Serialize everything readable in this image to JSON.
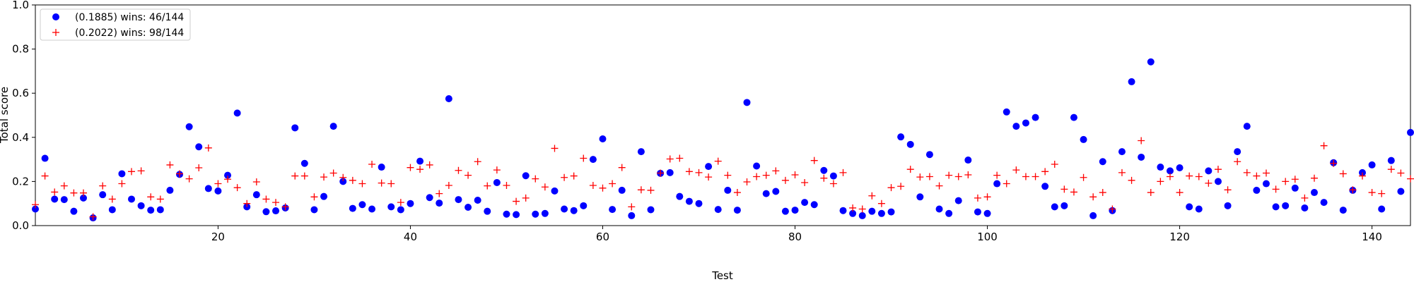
{
  "chart_data": {
    "type": "scatter",
    "title": "",
    "xlabel": "Test",
    "ylabel": "Total score",
    "xlim": [
      1,
      144
    ],
    "ylim": [
      0,
      1.0
    ],
    "xticks": [
      20,
      40,
      60,
      80,
      100,
      120,
      140
    ],
    "yticks": [
      0.0,
      0.2,
      0.4,
      0.6,
      0.8,
      1.0
    ],
    "grid": false,
    "legend_position": "top-left",
    "series": [
      {
        "name": "(0.1885) wins: 46/144",
        "marker": "circle",
        "color": "#0000ff",
        "x": [
          1,
          2,
          3,
          4,
          5,
          6,
          7,
          8,
          9,
          10,
          11,
          12,
          13,
          14,
          15,
          16,
          17,
          18,
          19,
          20,
          21,
          22,
          23,
          24,
          25,
          26,
          27,
          28,
          29,
          30,
          31,
          32,
          33,
          34,
          35,
          36,
          37,
          38,
          39,
          40,
          41,
          42,
          43,
          44,
          45,
          46,
          47,
          48,
          49,
          50,
          51,
          52,
          53,
          54,
          55,
          56,
          57,
          58,
          59,
          60,
          61,
          62,
          63,
          64,
          65,
          66,
          67,
          68,
          69,
          70,
          71,
          72,
          73,
          74,
          75,
          76,
          77,
          78,
          79,
          80,
          81,
          82,
          83,
          84,
          85,
          86,
          87,
          88,
          89,
          90,
          91,
          92,
          93,
          94,
          95,
          96,
          97,
          98,
          99,
          100,
          101,
          102,
          103,
          104,
          105,
          106,
          107,
          108,
          109,
          110,
          111,
          112,
          113,
          114,
          115,
          116,
          117,
          118,
          119,
          120,
          121,
          122,
          123,
          124,
          125,
          126,
          127,
          128,
          129,
          130,
          131,
          132,
          133,
          134,
          135,
          136,
          137,
          138,
          139,
          140,
          141,
          142,
          143,
          144
        ],
        "y": [
          0.075,
          0.305,
          0.12,
          0.118,
          0.065,
          0.125,
          0.035,
          0.14,
          0.072,
          0.235,
          0.12,
          0.09,
          0.07,
          0.072,
          0.16,
          0.232,
          0.448,
          0.357,
          0.168,
          0.157,
          0.228,
          0.51,
          0.085,
          0.14,
          0.063,
          0.067,
          0.08,
          0.443,
          0.282,
          0.072,
          0.132,
          0.45,
          0.2,
          0.078,
          0.095,
          0.075,
          0.265,
          0.085,
          0.072,
          0.1,
          0.292,
          0.127,
          0.102,
          0.575,
          0.118,
          0.083,
          0.115,
          0.065,
          0.195,
          0.052,
          0.05,
          0.226,
          0.052,
          0.055,
          0.157,
          0.075,
          0.068,
          0.09,
          0.3,
          0.393,
          0.073,
          0.16,
          0.045,
          0.335,
          0.072,
          0.237,
          0.24,
          0.132,
          0.11,
          0.1,
          0.268,
          0.073,
          0.16,
          0.07,
          0.558,
          0.27,
          0.145,
          0.155,
          0.065,
          0.07,
          0.105,
          0.095,
          0.25,
          0.225,
          0.068,
          0.055,
          0.045,
          0.065,
          0.055,
          0.062,
          0.402,
          0.368,
          0.13,
          0.322,
          0.075,
          0.055,
          0.113,
          0.297,
          0.062,
          0.055,
          0.19,
          0.515,
          0.45,
          0.465,
          0.49,
          0.178,
          0.085,
          0.09,
          0.49,
          0.39,
          0.045,
          0.29,
          0.068,
          0.335,
          0.652,
          0.31,
          0.742,
          0.265,
          0.248,
          0.262,
          0.085,
          0.075,
          0.248,
          0.2,
          0.09,
          0.335,
          0.45,
          0.16,
          0.19,
          0.085,
          0.09,
          0.17,
          0.08,
          0.15,
          0.105,
          0.285,
          0.07,
          0.16,
          0.24,
          0.275,
          0.075,
          0.295,
          0.155,
          0.422
        ]
      },
      {
        "name": "(0.2022) wins: 98/144",
        "marker": "plus",
        "color": "#ff0000",
        "x": [
          1,
          2,
          3,
          4,
          5,
          6,
          7,
          8,
          9,
          10,
          11,
          12,
          13,
          14,
          15,
          16,
          17,
          18,
          19,
          20,
          21,
          22,
          23,
          24,
          25,
          26,
          27,
          28,
          29,
          30,
          31,
          32,
          33,
          34,
          35,
          36,
          37,
          38,
          39,
          40,
          41,
          42,
          43,
          44,
          45,
          46,
          47,
          48,
          49,
          50,
          51,
          52,
          53,
          54,
          55,
          56,
          57,
          58,
          59,
          60,
          61,
          62,
          63,
          64,
          65,
          66,
          67,
          68,
          69,
          70,
          71,
          72,
          73,
          74,
          75,
          76,
          77,
          78,
          79,
          80,
          81,
          82,
          83,
          84,
          85,
          86,
          87,
          88,
          89,
          90,
          91,
          92,
          93,
          94,
          95,
          96,
          97,
          98,
          99,
          100,
          101,
          102,
          103,
          104,
          105,
          106,
          107,
          108,
          109,
          110,
          111,
          112,
          113,
          114,
          115,
          116,
          117,
          118,
          119,
          120,
          121,
          122,
          123,
          124,
          125,
          126,
          127,
          128,
          129,
          130,
          131,
          132,
          133,
          134,
          135,
          136,
          137,
          138,
          139,
          140,
          141,
          142,
          143,
          144
        ],
        "y": [
          0.095,
          0.225,
          0.152,
          0.18,
          0.148,
          0.148,
          0.04,
          0.18,
          0.12,
          0.19,
          0.245,
          0.248,
          0.13,
          0.12,
          0.275,
          0.235,
          0.212,
          0.262,
          0.352,
          0.19,
          0.21,
          0.172,
          0.1,
          0.198,
          0.12,
          0.105,
          0.085,
          0.225,
          0.225,
          0.13,
          0.22,
          0.238,
          0.218,
          0.205,
          0.19,
          0.278,
          0.193,
          0.19,
          0.105,
          0.263,
          0.255,
          0.275,
          0.145,
          0.182,
          0.25,
          0.228,
          0.29,
          0.18,
          0.252,
          0.182,
          0.11,
          0.125,
          0.212,
          0.175,
          0.35,
          0.218,
          0.225,
          0.305,
          0.182,
          0.17,
          0.19,
          0.263,
          0.085,
          0.162,
          0.16,
          0.238,
          0.302,
          0.305,
          0.245,
          0.24,
          0.22,
          0.292,
          0.228,
          0.15,
          0.198,
          0.222,
          0.228,
          0.248,
          0.205,
          0.23,
          0.195,
          0.295,
          0.215,
          0.19,
          0.24,
          0.08,
          0.075,
          0.135,
          0.1,
          0.172,
          0.178,
          0.255,
          0.22,
          0.222,
          0.18,
          0.228,
          0.222,
          0.23,
          0.125,
          0.13,
          0.228,
          0.19,
          0.252,
          0.222,
          0.222,
          0.245,
          0.278,
          0.165,
          0.152,
          0.218,
          0.13,
          0.15,
          0.075,
          0.24,
          0.205,
          0.385,
          0.15,
          0.2,
          0.222,
          0.15,
          0.225,
          0.222,
          0.192,
          0.255,
          0.162,
          0.29,
          0.24,
          0.225,
          0.238,
          0.165,
          0.2,
          0.21,
          0.125,
          0.215,
          0.362,
          0.282,
          0.235,
          0.162,
          0.225,
          0.15,
          0.145,
          0.255,
          0.238,
          0.212
        ]
      }
    ]
  }
}
